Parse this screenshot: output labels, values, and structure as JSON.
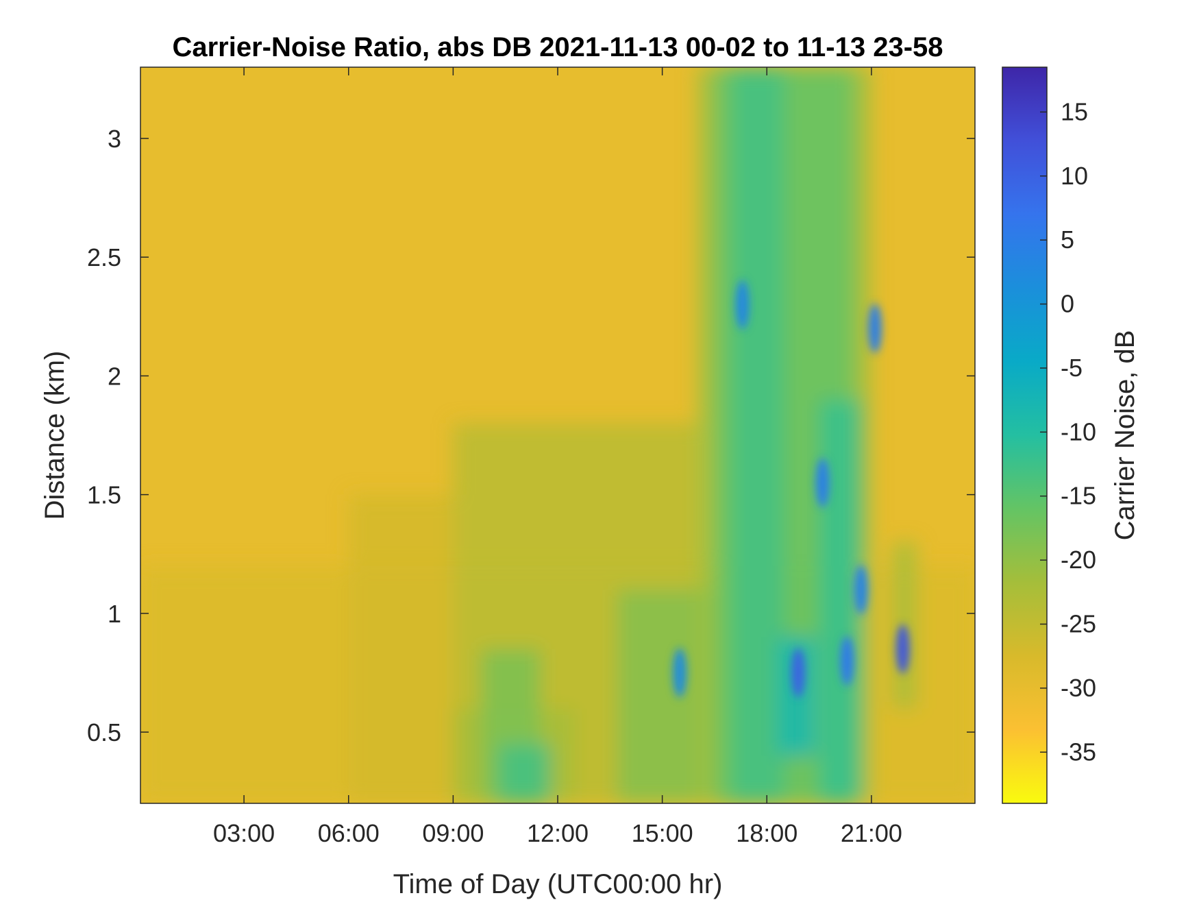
{
  "chart_data": {
    "type": "heatmap",
    "title": "Carrier-Noise Ratio, abs DB 2021-11-13 00-02 to 11-13 23-58",
    "xlabel": "Time of Day (UTC00:00 hr)",
    "ylabel": "Distance (km)",
    "colorbar_label": "Carrier Noise, dB",
    "x_unit": "hours",
    "x_range": [
      0.03,
      23.97
    ],
    "y_range": [
      0.2,
      3.3
    ],
    "c_range": [
      -39,
      18.5
    ],
    "colormap": "parula",
    "colormap_stops": [
      "#f9fb0e",
      "#fbc032",
      "#d8ba2b",
      "#a5be3a",
      "#64c464",
      "#24bfa1",
      "#09aac7",
      "#1b8fdb",
      "#3574ed",
      "#4150d9",
      "#3e26a8"
    ],
    "x_ticks": [
      {
        "value": 3,
        "label": "03:00"
      },
      {
        "value": 6,
        "label": "06:00"
      },
      {
        "value": 9,
        "label": "09:00"
      },
      {
        "value": 12,
        "label": "12:00"
      },
      {
        "value": 15,
        "label": "15:00"
      },
      {
        "value": 18,
        "label": "18:00"
      },
      {
        "value": 21,
        "label": "21:00"
      }
    ],
    "y_ticks": [
      {
        "value": 0.5,
        "label": "0.5"
      },
      {
        "value": 1,
        "label": "1"
      },
      {
        "value": 1.5,
        "label": "1.5"
      },
      {
        "value": 2,
        "label": "2"
      },
      {
        "value": 2.5,
        "label": "2.5"
      },
      {
        "value": 3,
        "label": "3"
      }
    ],
    "c_ticks": [
      {
        "value": 15,
        "label": "15"
      },
      {
        "value": 10,
        "label": "10"
      },
      {
        "value": 5,
        "label": "5"
      },
      {
        "value": 0,
        "label": "0"
      },
      {
        "value": -5,
        "label": "-5"
      },
      {
        "value": -10,
        "label": "-10"
      },
      {
        "value": -15,
        "label": "-15"
      },
      {
        "value": -20,
        "label": "-20"
      },
      {
        "value": -25,
        "label": "-25"
      },
      {
        "value": -30,
        "label": "-30"
      },
      {
        "value": -35,
        "label": "-35"
      }
    ],
    "background_value": -30,
    "regions": [
      {
        "x": [
          0,
          24
        ],
        "y": [
          0.2,
          1.2
        ],
        "value": -28
      },
      {
        "x": [
          6,
          9
        ],
        "y": [
          0.2,
          1.5
        ],
        "value": -27
      },
      {
        "x": [
          9,
          16
        ],
        "y": [
          0.2,
          1.8
        ],
        "value": -24
      },
      {
        "x": [
          9,
          12.5
        ],
        "y": [
          0.2,
          0.6
        ],
        "value": -22
      },
      {
        "x": [
          9.8,
          11.5
        ],
        "y": [
          0.2,
          0.85
        ],
        "value": -18
      },
      {
        "x": [
          10.3,
          11.8
        ],
        "y": [
          0.2,
          0.45
        ],
        "value": -13
      },
      {
        "x": [
          13.7,
          16.5
        ],
        "y": [
          0.2,
          1.1
        ],
        "value": -19
      },
      {
        "x": [
          16,
          21
        ],
        "y": [
          0.2,
          3.3
        ],
        "value": -21
      },
      {
        "x": [
          16.5,
          20.5
        ],
        "y": [
          0.2,
          3.3
        ],
        "value": -16
      },
      {
        "x": [
          17,
          18.5
        ],
        "y": [
          0.2,
          3.3
        ],
        "value": -13
      },
      {
        "x": [
          18.3,
          19.4
        ],
        "y": [
          0.4,
          0.9
        ],
        "value": -8
      },
      {
        "x": [
          19.5,
          20.7
        ],
        "y": [
          0.2,
          1.9
        ],
        "value": -12
      },
      {
        "x": [
          21.6,
          22.3
        ],
        "y": [
          0.6,
          1.3
        ],
        "value": -22
      }
    ],
    "hotspots": [
      {
        "x": 17.3,
        "y": 2.3,
        "value": 3
      },
      {
        "x": 18.9,
        "y": 0.75,
        "value": 10
      },
      {
        "x": 19.6,
        "y": 1.55,
        "value": 5
      },
      {
        "x": 20.3,
        "y": 0.8,
        "value": 6
      },
      {
        "x": 20.7,
        "y": 1.1,
        "value": 4
      },
      {
        "x": 21.1,
        "y": 2.2,
        "value": 5
      },
      {
        "x": 21.9,
        "y": 0.85,
        "value": 12
      },
      {
        "x": 15.5,
        "y": 0.75,
        "value": 2
      }
    ]
  }
}
